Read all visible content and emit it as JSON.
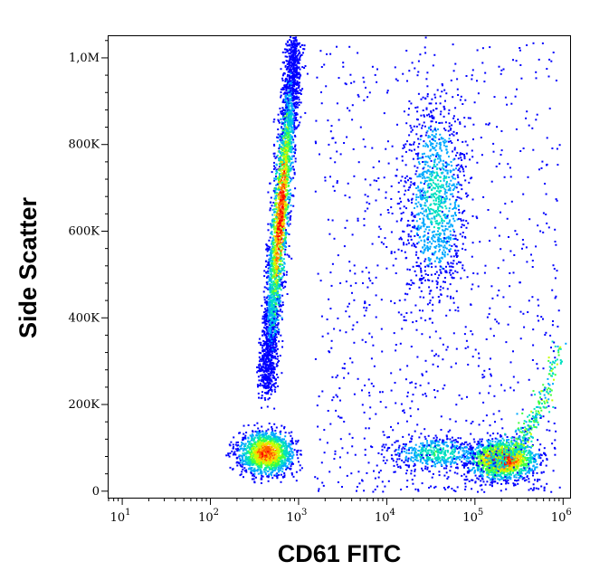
{
  "chart_data": {
    "type": "scatter",
    "style": "density-colored flow cytometry dot plot",
    "xlabel": "CD61 FITC",
    "ylabel": "Side Scatter",
    "x_scale": "log",
    "y_scale": "linear",
    "xlim": [
      7,
      1200000
    ],
    "ylim": [
      -15000,
      1050000
    ],
    "x_ticks": [
      {
        "value": 10,
        "base": "10",
        "exp": "1"
      },
      {
        "value": 100,
        "base": "10",
        "exp": "2"
      },
      {
        "value": 1000,
        "base": "10",
        "exp": "3"
      },
      {
        "value": 10000,
        "base": "10",
        "exp": "4"
      },
      {
        "value": 100000,
        "base": "10",
        "exp": "5"
      },
      {
        "value": 1000000,
        "base": "10",
        "exp": "6"
      }
    ],
    "y_ticks": [
      {
        "value": 0,
        "label": "0"
      },
      {
        "value": 200000,
        "label": "200K"
      },
      {
        "value": 400000,
        "label": "400K"
      },
      {
        "value": 600000,
        "label": "600K"
      },
      {
        "value": 800000,
        "label": "800K"
      },
      {
        "value": 1000000,
        "label": "1,0M"
      }
    ],
    "density_colors": [
      "#0000ff",
      "#00a8ff",
      "#00e0c0",
      "#40ff40",
      "#c8ff00",
      "#ffd000",
      "#ff6000",
      "#ff0000"
    ],
    "populations": [
      {
        "name_hint": "low-SSC CD61-dim cluster",
        "x_center": 420,
        "y_center": 90000,
        "x_spread_log": 0.17,
        "y_spread": 28000,
        "count": 1400,
        "peak_density": 0.85
      },
      {
        "name_hint": "high-SSC diagonal band",
        "x_range": [
          420,
          900
        ],
        "y_range": [
          250000,
          1040000
        ],
        "count": 3200,
        "peak_density": 1.0
      },
      {
        "name_hint": "CD61+ low-SSC cluster",
        "x_center": 200000,
        "y_center": 75000,
        "x_spread_log": 0.22,
        "y_spread": 25000,
        "count": 1500,
        "peak_density": 1.0
      },
      {
        "name_hint": "CD61+ rising tail",
        "x_range": [
          150000,
          900000
        ],
        "y_range": [
          70000,
          330000
        ],
        "count": 500,
        "peak_density": 0.55
      },
      {
        "name_hint": "mid cluster low SSC",
        "x_center": 35000,
        "y_center": 90000,
        "x_spread_log": 0.3,
        "y_spread": 22000,
        "count": 500,
        "peak_density": 0.35
      },
      {
        "name_hint": "high-SSC CD61 intermediate cloud",
        "x_center": 35000,
        "y_center": 680000,
        "x_spread_log": 0.2,
        "y_spread": 130000,
        "count": 1100,
        "peak_density": 0.3
      },
      {
        "name_hint": "background scatter",
        "x_range": [
          1500,
          900000
        ],
        "y_range": [
          0,
          1040000
        ],
        "count": 900,
        "peak_density": 0.1
      }
    ]
  }
}
